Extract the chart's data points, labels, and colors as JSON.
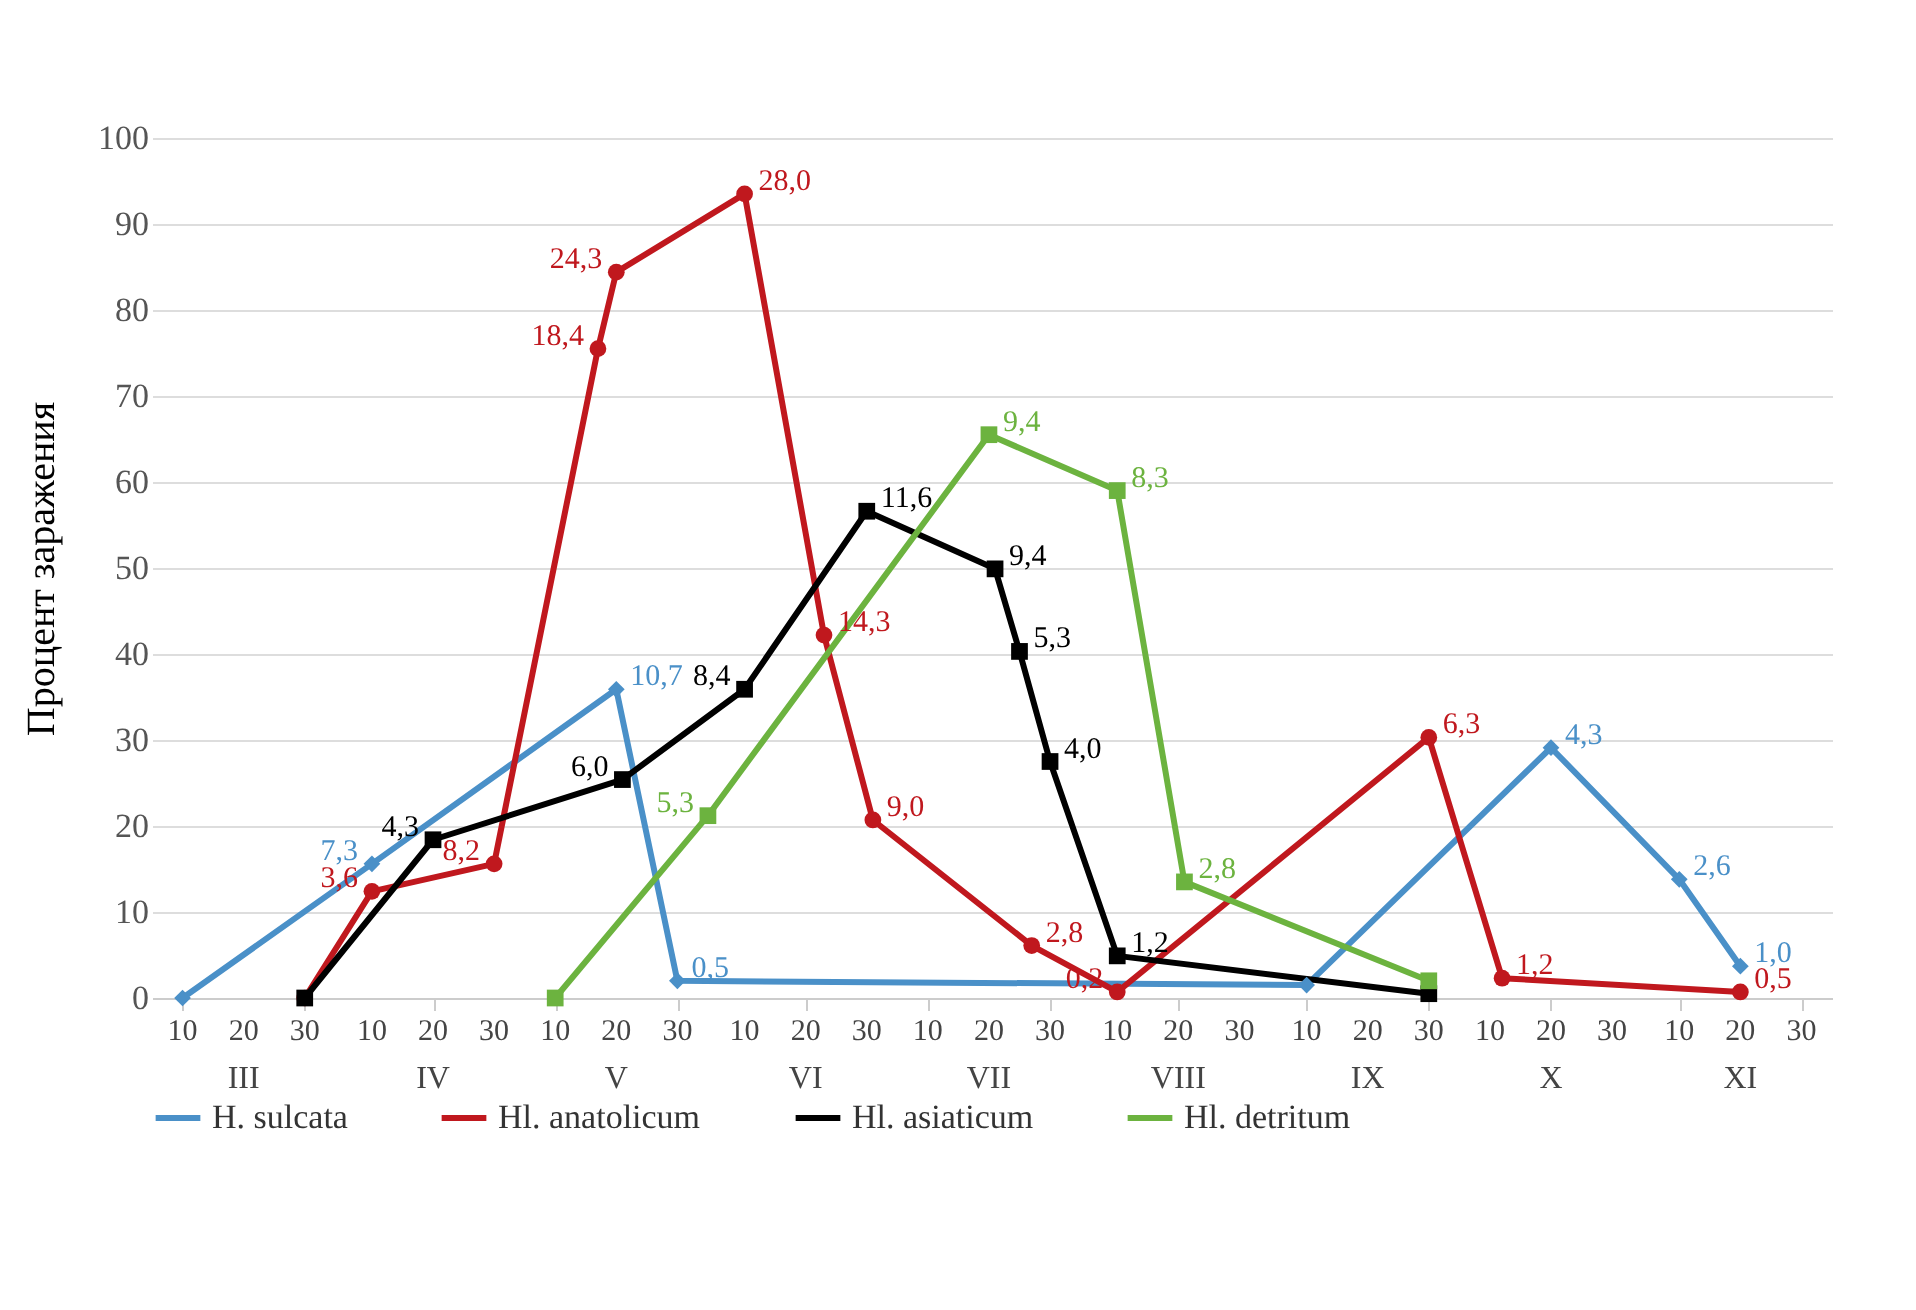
{
  "chart_data": {
    "type": "line",
    "ylabel": "Процент заражения",
    "xlim": [
      "--03-05",
      "--12-05"
    ],
    "xticks": [
      {
        "value": "--03-10",
        "label": "10"
      },
      {
        "value": "--03-20",
        "label": "20"
      },
      {
        "value": "--03-30",
        "label": "30"
      },
      {
        "value": "--04-10",
        "label": "10"
      },
      {
        "value": "--04-20",
        "label": "20"
      },
      {
        "value": "--04-30",
        "label": "30"
      },
      {
        "value": "--05-10",
        "label": "10"
      },
      {
        "value": "--05-20",
        "label": "20"
      },
      {
        "value": "--05-30",
        "label": "30"
      },
      {
        "value": "--06-10",
        "label": "10"
      },
      {
        "value": "--06-20",
        "label": "20"
      },
      {
        "value": "--06-30",
        "label": "30"
      },
      {
        "value": "--07-10",
        "label": "10"
      },
      {
        "value": "--07-20",
        "label": "20"
      },
      {
        "value": "--07-30",
        "label": "30"
      },
      {
        "value": "--08-10",
        "label": "10"
      },
      {
        "value": "--08-20",
        "label": "20"
      },
      {
        "value": "--08-30",
        "label": "30"
      },
      {
        "value": "--09-10",
        "label": "10"
      },
      {
        "value": "--09-20",
        "label": "20"
      },
      {
        "value": "--09-30",
        "label": "30"
      },
      {
        "value": "--10-10",
        "label": "10"
      },
      {
        "value": "--10-20",
        "label": "20"
      },
      {
        "value": "--10-30",
        "label": "30"
      },
      {
        "value": "--11-10",
        "label": "10"
      },
      {
        "value": "--11-20",
        "label": "20"
      },
      {
        "value": "--11-30",
        "label": "30"
      }
    ],
    "ylim": [
      0,
      100
    ],
    "yticks": [
      0,
      10,
      20,
      30,
      40,
      50,
      60,
      70,
      80,
      90,
      100
    ],
    "grid": "y",
    "legend": "bottom",
    "line_style": "solid",
    "annotations": [
      "III",
      "IV",
      "V",
      "VI",
      "VII",
      "VIII",
      "IX",
      "X",
      "XI",
      {
        "text": "7,3",
        "x": "--04-10",
        "y": 15.6
      },
      {
        "text": "10,7",
        "x": "--05-20",
        "y": 35.9
      },
      {
        "text": "0,5",
        "x": "--05-30",
        "y": 2
      },
      {
        "text": "4,3",
        "x": "--10-20",
        "y": 29.1
      },
      {
        "text": "2,6",
        "x": "--11-10",
        "y": 13.8
      },
      {
        "text": "1,0",
        "x": "--11-20",
        "y": 3.7
      },
      {
        "text": "3,6",
        "x": "--04-10",
        "y": 12.4
      },
      {
        "text": "8,2",
        "x": "--04-30",
        "y": 15.6
      },
      {
        "text": "18,4",
        "x": "--05-17",
        "y": 75.5
      },
      {
        "text": "24,3",
        "x": "--05-20",
        "y": 84.4
      },
      {
        "text": "28,0",
        "x": "--06-10",
        "y": 93.5
      },
      {
        "text": "14,3",
        "x": "--06-23",
        "y": 42.2
      },
      {
        "text": "9,0",
        "x": "--07-01",
        "y": 20.7
      },
      {
        "text": "2,8",
        "x": "--07-27",
        "y": 6.1
      },
      {
        "text": "0,2",
        "x": "--08-10",
        "y": 0.7
      },
      {
        "text": "6,3",
        "x": "--09-30",
        "y": 30.3
      },
      {
        "text": "1,2",
        "x": "--10-12",
        "y": 2.3
      },
      {
        "text": "0,5",
        "x": "--11-20",
        "y": 0.7
      },
      {
        "text": "4,3",
        "x": "--04-20",
        "y": 18.4
      },
      {
        "text": "6,0",
        "x": "--05-21",
        "y": 25.4
      },
      {
        "text": "8,4",
        "x": "--06-10",
        "y": 35.9
      },
      {
        "text": "11,6",
        "x": "--06-30",
        "y": 56.6
      },
      {
        "text": "9,4",
        "x": "--07-21",
        "y": 49.9
      },
      {
        "text": "5,3",
        "x": "--07-25",
        "y": 40.3
      },
      {
        "text": "4,0",
        "x": "--07-30",
        "y": 27.5
      },
      {
        "text": "1,2",
        "x": "--08-10",
        "y": 4.9
      },
      {
        "text": "5,3",
        "x": "--06-04",
        "y": 21.2
      },
      {
        "text": "9,4",
        "x": "--07-20",
        "y": 65.5
      },
      {
        "text": "8,3",
        "x": "--08-10",
        "y": 59
      },
      {
        "text": "2,8",
        "x": "--08-21",
        "y": 13.5
      }
    ],
    "series": [
      {
        "name": "H. sulcata",
        "color": "#4a90c8",
        "marker": "diamond",
        "x": [
          "--03-10",
          "--04-10",
          "--05-20",
          "--05-30",
          "--09-10",
          "--10-20",
          "--11-10",
          "--11-20"
        ],
        "values": [
          0,
          15.6,
          35.9,
          2,
          1.5,
          29.1,
          13.8,
          3.7
        ]
      },
      {
        "name": "Hl. anatolicum",
        "color": "#c0181e",
        "marker": "circle",
        "x": [
          "--03-30",
          "--04-10",
          "--04-30",
          "--05-17",
          "--05-20",
          "--06-10",
          "--06-23",
          "--07-01",
          "--07-27",
          "--08-10",
          "--09-30",
          "--10-12",
          "--11-20"
        ],
        "values": [
          0,
          12.4,
          15.6,
          75.5,
          84.4,
          93.5,
          42.2,
          20.7,
          6.1,
          0.7,
          30.3,
          2.3,
          0.7
        ]
      },
      {
        "name": "Hl. asiaticum",
        "color": "#000000",
        "marker": "square",
        "x": [
          "--03-30",
          "--04-20",
          "--05-21",
          "--06-10",
          "--06-30",
          "--07-21",
          "--07-25",
          "--07-30",
          "--08-10",
          "--09-30"
        ],
        "values": [
          0,
          18.4,
          25.4,
          35.9,
          56.6,
          49.9,
          40.3,
          27.5,
          4.9,
          0.5
        ]
      },
      {
        "name": "Hl. detritum",
        "color": "#6cb33f",
        "marker": "square",
        "x": [
          "--05-10",
          "--06-04",
          "--07-20",
          "--08-10",
          "--08-21",
          "--09-30"
        ],
        "values": [
          0,
          21.2,
          65.5,
          59,
          13.5,
          2
        ]
      }
    ]
  }
}
